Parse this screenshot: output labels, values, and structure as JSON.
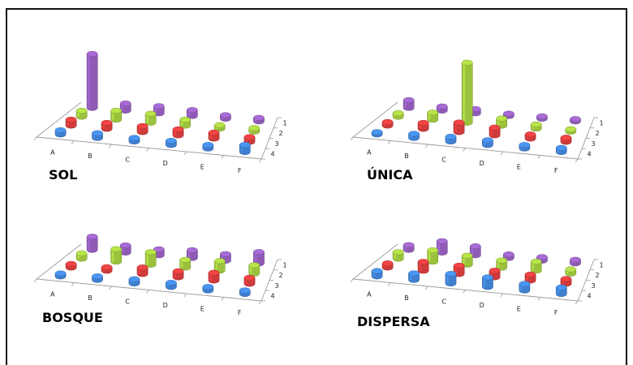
{
  "colors": {
    "row1": "#8f5bb6",
    "row2": "#9cc23d",
    "row3": "#cf3a3a",
    "row4": "#3f7fcf"
  },
  "chart_data": [
    {
      "type": "bar3d",
      "title": "SOL",
      "categories": [
        "A",
        "B",
        "C",
        "D",
        "E",
        "F"
      ],
      "rows": [
        "1",
        "2",
        "3",
        "4"
      ],
      "series": [
        {
          "row": "1",
          "values": [
            9,
            1.2,
            1.2,
            1,
            0.6,
            0.6
          ]
        },
        {
          "row": "2",
          "values": [
            1,
            1.5,
            1.5,
            1,
            0.6,
            0.6
          ]
        },
        {
          "row": "3",
          "values": [
            1,
            1,
            1,
            1,
            1,
            0.8
          ]
        },
        {
          "row": "4",
          "values": [
            0.7,
            0.8,
            0.6,
            0.7,
            0.6,
            1.2
          ]
        }
      ]
    },
    {
      "type": "bar3d",
      "title": "ÚNICA",
      "categories": [
        "A",
        "B",
        "C",
        "D",
        "E",
        "F"
      ],
      "rows": [
        "1",
        "2",
        "3",
        "4"
      ],
      "series": [
        {
          "row": "1",
          "values": [
            1.3,
            0.7,
            0.7,
            0.4,
            0.4,
            0.4
          ]
        },
        {
          "row": "2",
          "values": [
            0.6,
            1.2,
            10,
            1.2,
            0.7,
            0.4
          ]
        },
        {
          "row": "3",
          "values": [
            0.6,
            1,
            1.6,
            1.3,
            0.7,
            0.7
          ]
        },
        {
          "row": "4",
          "values": [
            0.4,
            0.7,
            0.8,
            0.8,
            0.6,
            0.7
          ]
        }
      ]
    },
    {
      "type": "bar3d",
      "title": "BOSQUE",
      "categories": [
        "A",
        "B",
        "C",
        "D",
        "E",
        "F"
      ],
      "rows": [
        "1",
        "2",
        "3",
        "4"
      ],
      "series": [
        {
          "row": "1",
          "values": [
            2.2,
            1.2,
            1,
            1.3,
            1.1,
            1.9
          ]
        },
        {
          "row": "2",
          "values": [
            0.9,
            2.1,
            2.1,
            1.3,
            1.6,
            1.4
          ]
        },
        {
          "row": "3",
          "values": [
            0.6,
            0.6,
            1.1,
            1,
            1.3,
            1
          ]
        },
        {
          "row": "4",
          "values": [
            0.5,
            0.6,
            0.7,
            0.7,
            0.6,
            0.6
          ]
        }
      ]
    },
    {
      "type": "bar3d",
      "title": "DISPERSA",
      "categories": [
        "A",
        "B",
        "C",
        "D",
        "E",
        "F"
      ],
      "rows": [
        "1",
        "2",
        "3",
        "4"
      ],
      "series": [
        {
          "row": "1",
          "values": [
            0.8,
            1.9,
            1.5,
            0.6,
            0.6,
            0.6
          ]
        },
        {
          "row": "2",
          "values": [
            1.1,
            1.9,
            1.5,
            1.2,
            1.5,
            0.7
          ]
        },
        {
          "row": "3",
          "values": [
            0.7,
            1.5,
            1.4,
            1.1,
            1,
            0.8
          ]
        },
        {
          "row": "4",
          "values": [
            0.9,
            1.1,
            1.6,
            1.6,
            1.1,
            1.1
          ]
        }
      ]
    }
  ]
}
